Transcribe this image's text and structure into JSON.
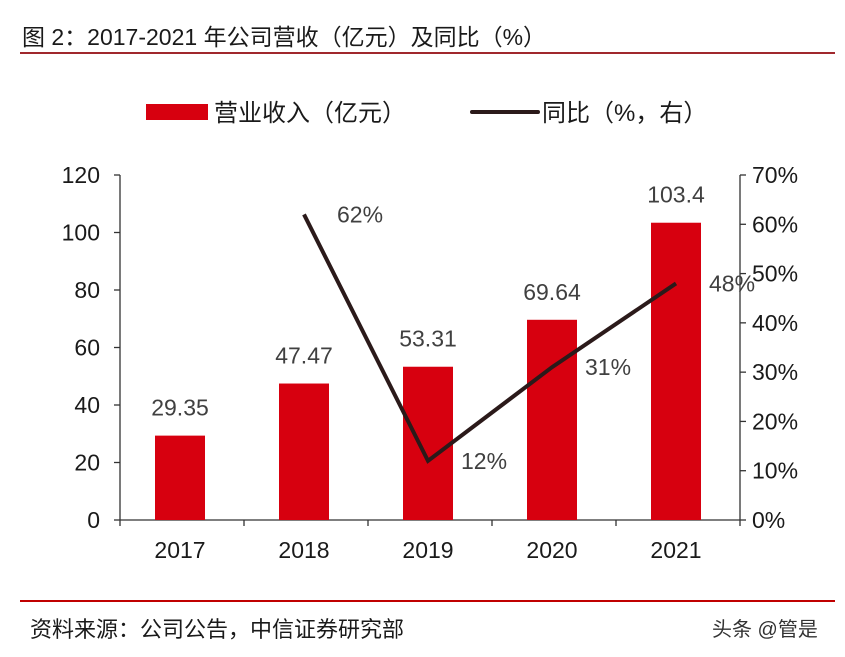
{
  "title": "图 2：2017-2021 年公司营收（亿元）及同比（%）",
  "source": "资料来源：公司公告，中信证券研究部",
  "watermark": "头条 @管是",
  "colors": {
    "bar": "#d7000f",
    "line": "#2b1a1a",
    "title_rule": "#a0282d",
    "source_rule": "#c00000"
  },
  "chart_data": {
    "type": "bar+line",
    "categories": [
      "2017",
      "2018",
      "2019",
      "2020",
      "2021"
    ],
    "series": [
      {
        "name": "营业收入（亿元）",
        "type": "bar",
        "axis": "left",
        "values": [
          29.35,
          47.47,
          53.31,
          69.64,
          103.4
        ],
        "labels": [
          "29.35",
          "47.47",
          "53.31",
          "69.64",
          "103.4"
        ]
      },
      {
        "name": "同比（%，右）",
        "type": "line",
        "axis": "right",
        "values": [
          null,
          62,
          12,
          31,
          48
        ],
        "labels": [
          "",
          "62%",
          "12%",
          "31%",
          "48%"
        ]
      }
    ],
    "left_axis": {
      "range": [
        0,
        120
      ],
      "ticks": [
        "0",
        "20",
        "40",
        "60",
        "80",
        "100",
        "120"
      ]
    },
    "right_axis": {
      "range": [
        0,
        70
      ],
      "ticks": [
        "0%",
        "10%",
        "20%",
        "30%",
        "40%",
        "50%",
        "60%",
        "70%"
      ]
    },
    "grid": false,
    "legend": "top"
  }
}
